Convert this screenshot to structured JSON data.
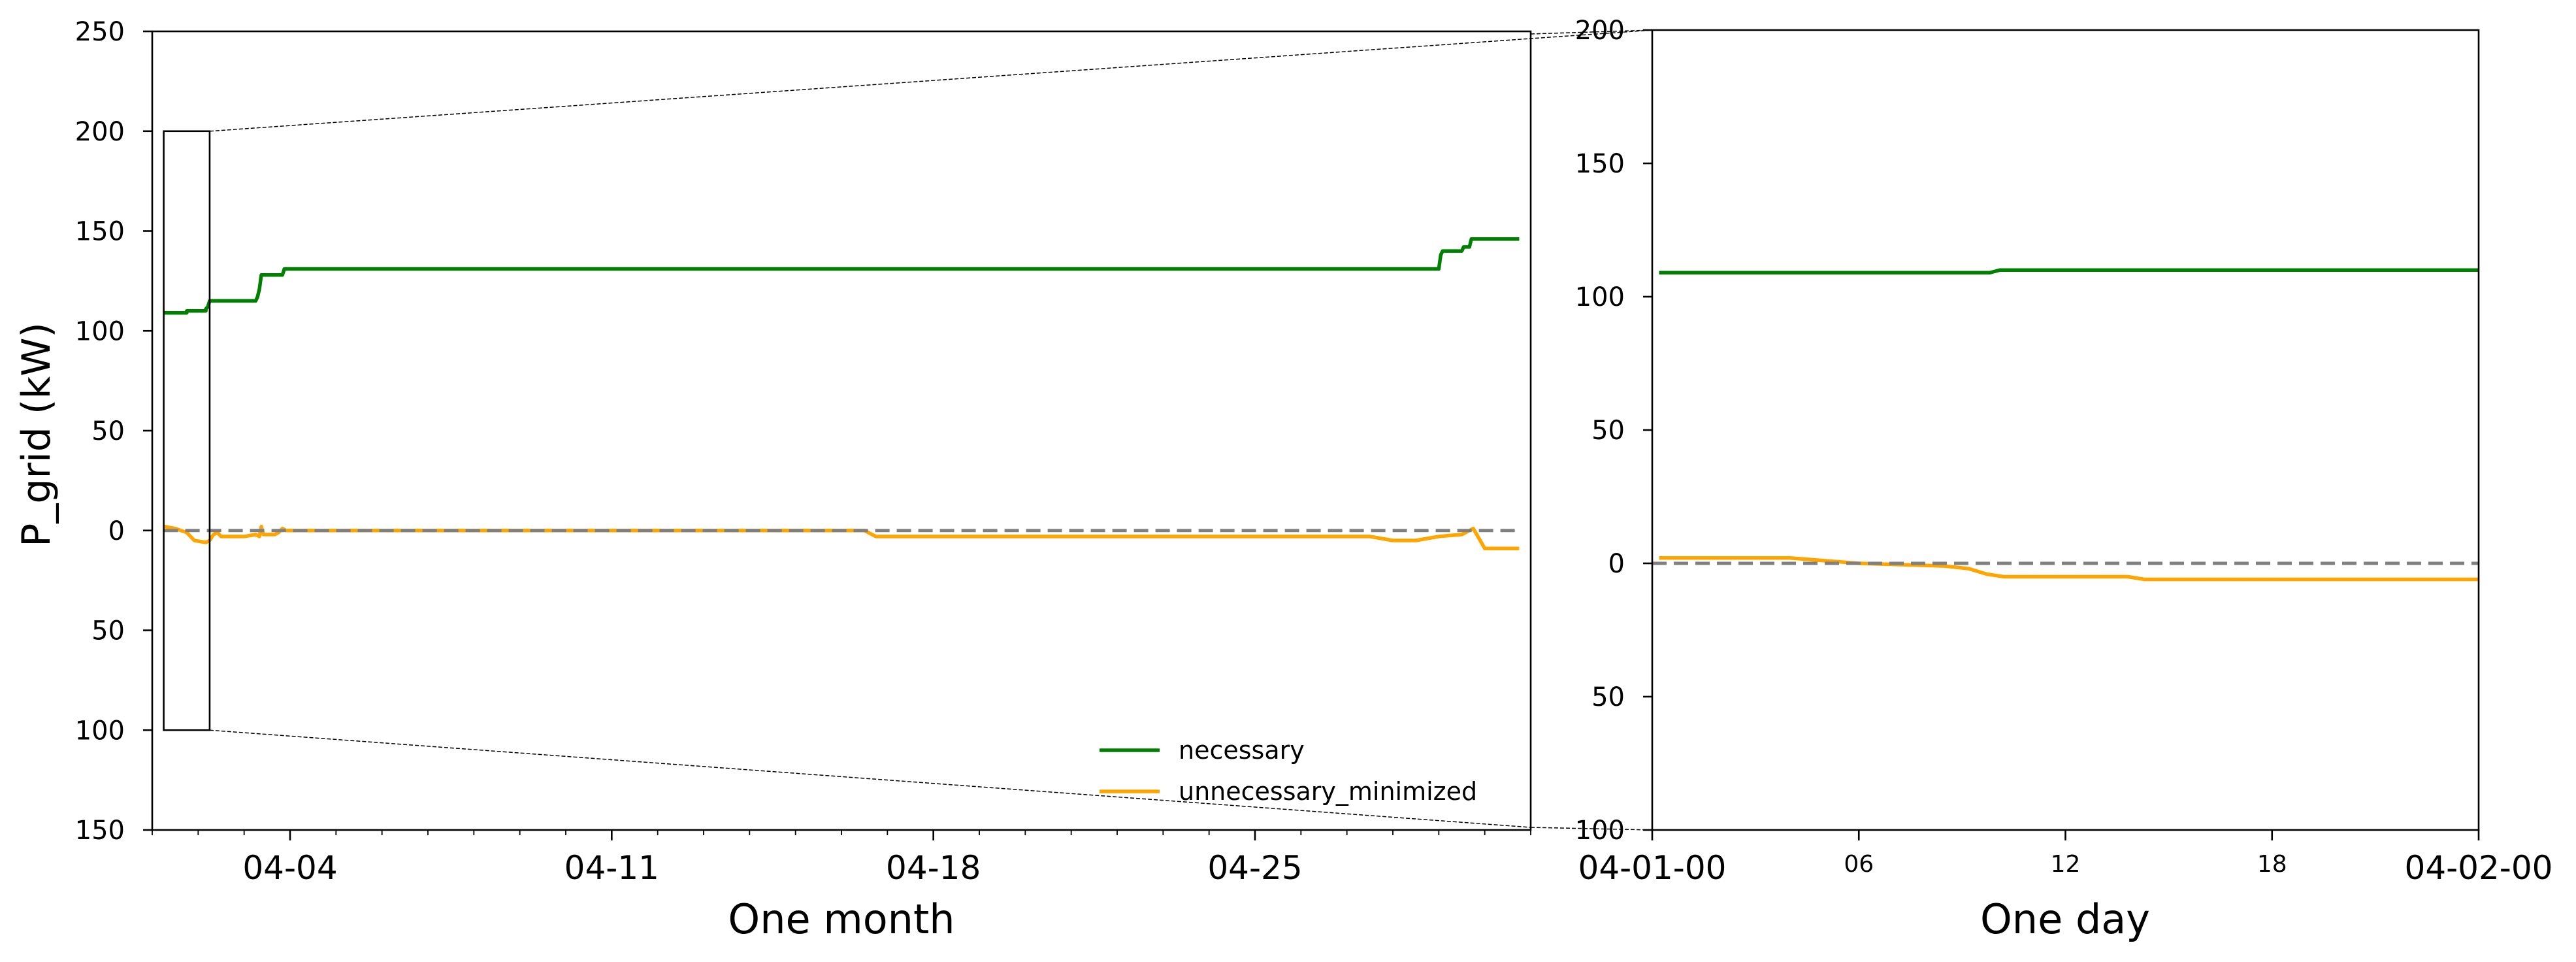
{
  "chart_data": [
    {
      "id": "month",
      "type": "line",
      "title": "",
      "xlabel": "One month",
      "ylabel": "P_grid (kW)",
      "x_axis": "date",
      "xlim": [
        "2023-04-01T00:00",
        "2023-05-01T00:00"
      ],
      "ylim": [
        -150,
        250
      ],
      "y_tick_values": [
        250,
        200,
        150,
        100,
        50,
        0,
        -50,
        -100,
        -150
      ],
      "y_tick_labels": [
        "250",
        "200",
        "150",
        "100",
        "50",
        "0",
        "50",
        "100",
        "150"
      ],
      "x_ticks": [
        {
          "x": "2023-04-04T00:00",
          "label": "04-04"
        },
        {
          "x": "2023-04-11T00:00",
          "label": "04-11"
        },
        {
          "x": "2023-04-18T00:00",
          "label": "04-18"
        },
        {
          "x": "2023-04-25T00:00",
          "label": "04-25"
        }
      ],
      "x_minor_ticks": [
        "2023-04-01T00:00",
        "2023-04-02T00:00",
        "2023-04-03T00:00",
        "2023-04-05T00:00",
        "2023-04-06T00:00",
        "2023-04-07T00:00",
        "2023-04-08T00:00",
        "2023-04-09T00:00",
        "2023-04-10T00:00",
        "2023-04-12T00:00",
        "2023-04-13T00:00",
        "2023-04-14T00:00",
        "2023-04-15T00:00",
        "2023-04-16T00:00",
        "2023-04-17T00:00",
        "2023-04-19T00:00",
        "2023-04-20T00:00",
        "2023-04-21T00:00",
        "2023-04-22T00:00",
        "2023-04-23T00:00",
        "2023-04-24T00:00",
        "2023-04-26T00:00",
        "2023-04-27T00:00",
        "2023-04-28T00:00",
        "2023-04-29T00:00",
        "2023-04-30T00:00",
        "2023-05-01T00:00"
      ],
      "zero_line": true,
      "grid": false,
      "legend": "lower-right",
      "zoom_box": {
        "x": [
          "2023-04-01T06:00",
          "2023-04-02T06:00"
        ],
        "y": [
          -100,
          200
        ]
      },
      "series": [
        {
          "name": "necessary",
          "color": "#008000",
          "points": [
            [
              "2023-04-01T06:00",
              109
            ],
            [
              "2023-04-01T18:00",
              109
            ],
            [
              "2023-04-01T18:00",
              110
            ],
            [
              "2023-04-02T04:00",
              110
            ],
            [
              "2023-04-02T04:00",
              111
            ],
            [
              "2023-04-02T05:00",
              112
            ],
            [
              "2023-04-02T06:00",
              115
            ],
            [
              "2023-04-03T06:00",
              115
            ],
            [
              "2023-04-03T07:00",
              117
            ],
            [
              "2023-04-03T08:00",
              121
            ],
            [
              "2023-04-03T09:00",
              128
            ],
            [
              "2023-04-03T20:00",
              128
            ],
            [
              "2023-04-03T21:00",
              131
            ],
            [
              "2023-04-29T00:00",
              131
            ],
            [
              "2023-04-29T01:00",
              138
            ],
            [
              "2023-04-29T02:00",
              140
            ],
            [
              "2023-04-29T12:00",
              140
            ],
            [
              "2023-04-29T13:00",
              142
            ],
            [
              "2023-04-29T16:00",
              142
            ],
            [
              "2023-04-29T17:00",
              146
            ],
            [
              "2023-04-30T18:00",
              146
            ]
          ]
        },
        {
          "name": "unnecessary_minimized",
          "color": "#FFA500",
          "points": [
            [
              "2023-04-01T06:00",
              2
            ],
            [
              "2023-04-01T12:00",
              1
            ],
            [
              "2023-04-01T18:00",
              -1
            ],
            [
              "2023-04-01T22:00",
              -5
            ],
            [
              "2023-04-02T04:00",
              -6
            ],
            [
              "2023-04-02T06:00",
              -5
            ],
            [
              "2023-04-02T08:00",
              -2
            ],
            [
              "2023-04-02T10:00",
              -1
            ],
            [
              "2023-04-02T12:00",
              -3
            ],
            [
              "2023-04-02T18:00",
              -3
            ],
            [
              "2023-04-03T00:00",
              -3
            ],
            [
              "2023-04-03T06:00",
              -2
            ],
            [
              "2023-04-03T08:00",
              -3
            ],
            [
              "2023-04-03T09:00",
              2
            ],
            [
              "2023-04-03T10:00",
              -2
            ],
            [
              "2023-04-03T16:00",
              -2
            ],
            [
              "2023-04-03T18:00",
              -1
            ],
            [
              "2023-04-03T20:00",
              1
            ],
            [
              "2023-04-03T22:00",
              0
            ],
            [
              "2023-04-04T12:00",
              0
            ],
            [
              "2023-04-05T00:00",
              0
            ],
            [
              "2023-04-16T12:00",
              0
            ],
            [
              "2023-04-16T18:00",
              -3
            ],
            [
              "2023-04-27T12:00",
              -3
            ],
            [
              "2023-04-28T00:00",
              -5
            ],
            [
              "2023-04-28T12:00",
              -5
            ],
            [
              "2023-04-29T00:00",
              -3
            ],
            [
              "2023-04-29T12:00",
              -2
            ],
            [
              "2023-04-29T18:00",
              1
            ],
            [
              "2023-04-30T00:00",
              -9
            ],
            [
              "2023-04-30T18:00",
              -9
            ]
          ]
        },
        {
          "name": "zero_reference",
          "color": "#808080",
          "points": [
            [
              "2023-04-01T06:00",
              0
            ],
            [
              "2023-04-30T18:00",
              0
            ]
          ]
        }
      ]
    },
    {
      "id": "day",
      "type": "line",
      "title": "",
      "xlabel": "One day",
      "ylabel": "",
      "x_axis": "hour",
      "xlim": [
        0,
        24
      ],
      "ylim": [
        -100,
        200
      ],
      "y_tick_values": [
        200,
        150,
        100,
        50,
        0,
        -50,
        -100
      ],
      "y_tick_labels": [
        "200",
        "150",
        "100",
        "50",
        "0",
        "50",
        "100"
      ],
      "x_ticks": [
        {
          "x": 0,
          "label": "04-01-00",
          "style": "large"
        },
        {
          "x": 6,
          "label": "06",
          "style": "small"
        },
        {
          "x": 12,
          "label": "12",
          "style": "small"
        },
        {
          "x": 18,
          "label": "18",
          "style": "small"
        },
        {
          "x": 24,
          "label": "04-02-00",
          "style": "large"
        }
      ],
      "zero_line": true,
      "grid": false,
      "series": [
        {
          "name": "necessary",
          "color": "#008000",
          "points": [
            [
              0.2,
              109
            ],
            [
              9.8,
              109
            ],
            [
              10.1,
              110
            ],
            [
              24,
              110
            ]
          ]
        },
        {
          "name": "unnecessary_minimized",
          "color": "#FFA500",
          "points": [
            [
              0.2,
              2
            ],
            [
              4.0,
              2
            ],
            [
              5.0,
              1
            ],
            [
              6.0,
              0
            ],
            [
              8.5,
              -1
            ],
            [
              9.2,
              -2
            ],
            [
              9.7,
              -4
            ],
            [
              10.2,
              -5
            ],
            [
              13.8,
              -5
            ],
            [
              14.3,
              -6
            ],
            [
              24,
              -6
            ]
          ]
        },
        {
          "name": "zero_reference",
          "color": "#808080",
          "points": [
            [
              0,
              0
            ],
            [
              24,
              0
            ]
          ]
        }
      ]
    }
  ],
  "legend": {
    "entries": [
      {
        "label": "necessary",
        "color": "#008000"
      },
      {
        "label": "unnecessary_minimized",
        "color": "#FFA500"
      }
    ]
  }
}
